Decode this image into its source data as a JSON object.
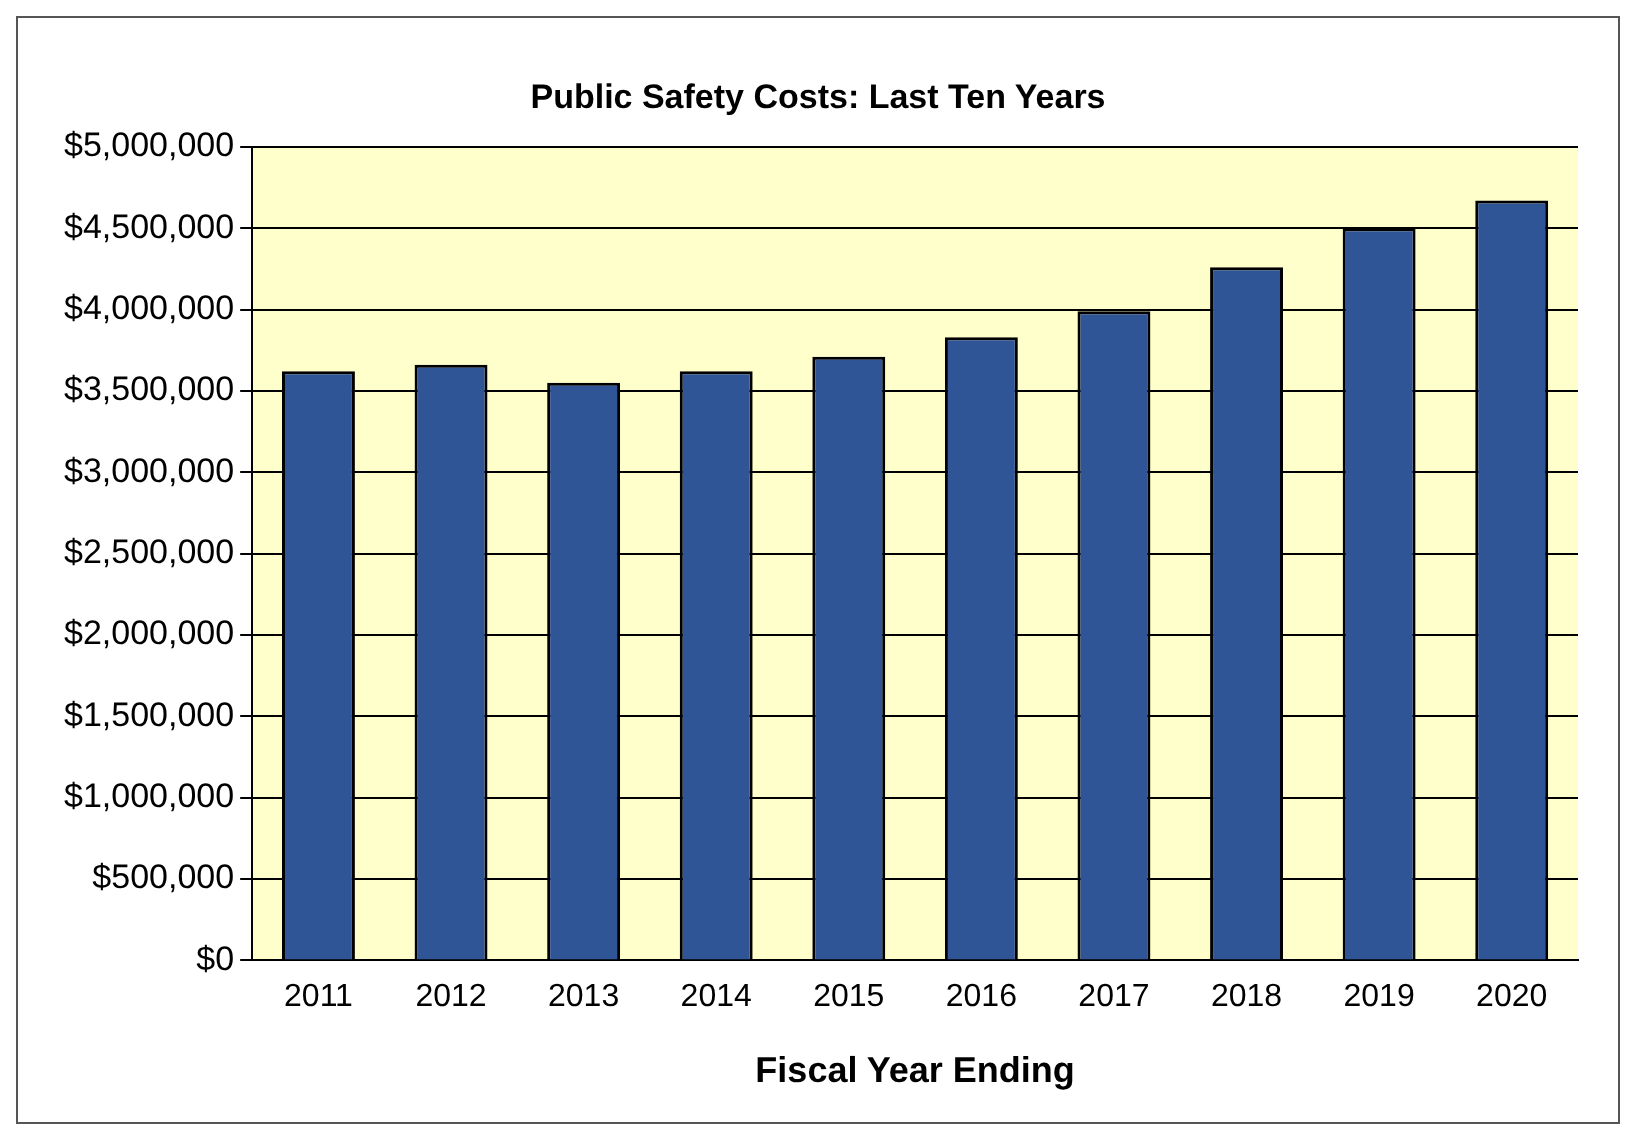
{
  "chart_data": {
    "type": "bar",
    "title": "Public Safety Costs: Last Ten Years",
    "xlabel": "Fiscal Year Ending",
    "categories": [
      "2011",
      "2012",
      "2013",
      "2014",
      "2015",
      "2016",
      "2017",
      "2018",
      "2019",
      "2020"
    ],
    "values": [
      3620000,
      3660000,
      3550000,
      3620000,
      3710000,
      3830000,
      3990000,
      4260000,
      4500000,
      4670000
    ],
    "color": "#2f5597",
    "ylim": [
      0,
      5000000
    ],
    "yticks": [
      {
        "value": 0,
        "label": "$0"
      },
      {
        "value": 500000,
        "label": "$500,000"
      },
      {
        "value": 1000000,
        "label": "$1,000,000"
      },
      {
        "value": 1500000,
        "label": "$1,500,000"
      },
      {
        "value": 2000000,
        "label": "$2,000,000"
      },
      {
        "value": 2500000,
        "label": "$2,500,000"
      },
      {
        "value": 3000000,
        "label": "$3,000,000"
      },
      {
        "value": 3500000,
        "label": "$3,500,000"
      },
      {
        "value": 4000000,
        "label": "$4,000,000"
      },
      {
        "value": 4500000,
        "label": "$4,500,000"
      },
      {
        "value": 5000000,
        "label": "$5,000,000"
      }
    ],
    "grid": "y",
    "legend": false
  }
}
